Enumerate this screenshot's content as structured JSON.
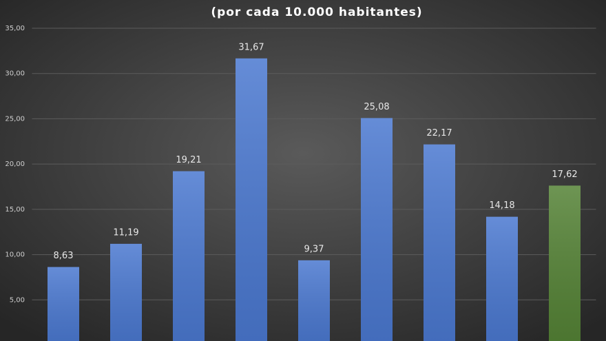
{
  "chart_data": {
    "type": "bar",
    "subtitle": "(por cada 10.000 habitantes)",
    "categories": [
      null,
      null,
      null,
      null,
      null,
      null,
      null,
      null,
      null
    ],
    "values": [
      8.63,
      11.19,
      19.21,
      31.67,
      9.37,
      25.08,
      22.17,
      14.18,
      17.62
    ],
    "value_labels": [
      "8,63",
      "11,19",
      "19,21",
      "31,67",
      "9,37",
      "25,08",
      "22,17",
      "14,18",
      "17,62"
    ],
    "colors": [
      "#4a78d0",
      "#4a78d0",
      "#4a78d0",
      "#4a78d0",
      "#4a78d0",
      "#4a78d0",
      "#4a78d0",
      "#4a78d0",
      "#548235"
    ],
    "ylim": [
      0,
      35
    ],
    "yticks": [
      {
        "value": 5,
        "label": "5,00"
      },
      {
        "value": 10,
        "label": "10,00"
      },
      {
        "value": 15,
        "label": "15,00"
      },
      {
        "value": 20,
        "label": "20,00"
      },
      {
        "value": 25,
        "label": "25,00"
      },
      {
        "value": 30,
        "label": "30,00"
      },
      {
        "value": 35,
        "label": "35,00"
      }
    ],
    "grid": true
  }
}
